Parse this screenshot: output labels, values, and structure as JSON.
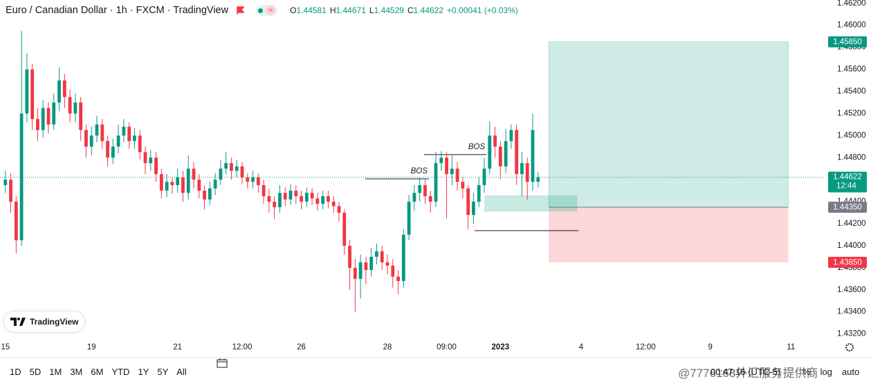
{
  "header": {
    "title": "Euro / Canadian Dollar · 1h · FXCM · TradingView",
    "ohlc_letters": [
      "O",
      "H",
      "L",
      "C"
    ],
    "change": "+0.00041 (+0.03%)"
  },
  "chart_data": {
    "type": "candlestick",
    "open": [
      1.4455,
      1.446,
      1.444,
      1.4405,
      1.452,
      1.456,
      1.4515,
      1.4505,
      1.4525,
      1.451,
      1.453,
      1.455,
      1.4535,
      1.452,
      1.453,
      1.4505,
      1.449,
      1.45,
      1.451,
      1.4495,
      1.448,
      1.449,
      1.45,
      1.4508,
      1.4495,
      1.45,
      1.4485,
      1.4475,
      1.448,
      1.4465,
      1.445,
      1.4458,
      1.4455,
      1.4462,
      1.4448,
      1.447,
      1.446,
      1.445,
      1.4442,
      1.4452,
      1.446,
      1.447,
      1.4475,
      1.4468,
      1.4472,
      1.4462,
      1.4458,
      1.4462,
      1.4455,
      1.4445,
      1.444,
      1.4435,
      1.4448,
      1.4442,
      1.445,
      1.4445,
      1.444,
      1.4448,
      1.4443,
      1.4438,
      1.4445,
      1.444,
      1.4436,
      1.443,
      1.44,
      1.438,
      1.437,
      1.4385,
      1.4378,
      1.439,
      1.4395,
      1.4385,
      1.4382,
      1.4372,
      1.4368,
      1.441,
      1.444,
      1.4448,
      1.4455,
      1.4445,
      1.444,
      1.4475,
      1.448,
      1.4465,
      1.447,
      1.4458,
      1.4452,
      1.4428,
      1.444,
      1.4455,
      1.447,
      1.45,
      1.449,
      1.4472,
      1.4495,
      1.4505,
      1.4465,
      1.4475,
      1.4458,
      1.44581
    ],
    "high": [
      1.4468,
      1.4466,
      1.4445,
      1.4595,
      1.4575,
      1.4565,
      1.4525,
      1.4532,
      1.453,
      1.4538,
      1.4562,
      1.4556,
      1.4542,
      1.4538,
      1.4535,
      1.451,
      1.4508,
      1.4518,
      1.4515,
      1.45,
      1.4497,
      1.451,
      1.4515,
      1.4512,
      1.4507,
      1.4505,
      1.449,
      1.4487,
      1.4485,
      1.447,
      1.4465,
      1.4462,
      1.447,
      1.4468,
      1.4482,
      1.4476,
      1.4465,
      1.4455,
      1.4458,
      1.4466,
      1.4478,
      1.4485,
      1.448,
      1.4478,
      1.4476,
      1.4466,
      1.4468,
      1.4466,
      1.446,
      1.4452,
      1.4445,
      1.4455,
      1.4453,
      1.4456,
      1.4455,
      1.445,
      1.4453,
      1.4452,
      1.4448,
      1.445,
      1.445,
      1.4445,
      1.444,
      1.4433,
      1.4405,
      1.4388,
      1.4392,
      1.439,
      1.4398,
      1.4402,
      1.44,
      1.4392,
      1.4388,
      1.4378,
      1.4415,
      1.4446,
      1.4455,
      1.4462,
      1.446,
      1.445,
      1.4485,
      1.4486,
      1.4485,
      1.4482,
      1.4476,
      1.4462,
      1.4455,
      1.4448,
      1.4462,
      1.448,
      1.4513,
      1.4508,
      1.4495,
      1.4506,
      1.451,
      1.451,
      1.4485,
      1.448,
      1.452,
      1.44671
    ],
    "low": [
      1.4448,
      1.443,
      1.4393,
      1.44,
      1.4512,
      1.4505,
      1.4495,
      1.4498,
      1.4502,
      1.4505,
      1.4522,
      1.4525,
      1.4512,
      1.4512,
      1.4495,
      1.448,
      1.4482,
      1.4494,
      1.4488,
      1.4472,
      1.4474,
      1.4484,
      1.4494,
      1.4488,
      1.4488,
      1.4478,
      1.4465,
      1.4468,
      1.4458,
      1.4443,
      1.4444,
      1.4447,
      1.4448,
      1.444,
      1.4442,
      1.4452,
      1.4443,
      1.4433,
      1.4437,
      1.4446,
      1.4455,
      1.4465,
      1.446,
      1.4462,
      1.4456,
      1.4452,
      1.4452,
      1.4448,
      1.4438,
      1.443,
      1.4424,
      1.443,
      1.4436,
      1.4437,
      1.4438,
      1.4433,
      1.4435,
      1.4437,
      1.4432,
      1.4433,
      1.4434,
      1.443,
      1.4422,
      1.4392,
      1.436,
      1.434,
      1.4352,
      1.4365,
      1.4372,
      1.4383,
      1.4378,
      1.4374,
      1.4362,
      1.4356,
      1.4362,
      1.4405,
      1.4432,
      1.444,
      1.4438,
      1.443,
      1.4435,
      1.4468,
      1.4425,
      1.4455,
      1.445,
      1.4443,
      1.4415,
      1.442,
      1.4435,
      1.4448,
      1.4465,
      1.448,
      1.446,
      1.4466,
      1.4488,
      1.4455,
      1.4445,
      1.4442,
      1.445,
      1.44529
    ],
    "close": [
      1.446,
      1.444,
      1.4405,
      1.452,
      1.456,
      1.4515,
      1.4505,
      1.4525,
      1.451,
      1.453,
      1.455,
      1.4535,
      1.452,
      1.453,
      1.4505,
      1.449,
      1.45,
      1.451,
      1.4495,
      1.448,
      1.449,
      1.45,
      1.4508,
      1.4495,
      1.45,
      1.4485,
      1.4475,
      1.448,
      1.4465,
      1.445,
      1.4458,
      1.4455,
      1.4462,
      1.4448,
      1.447,
      1.446,
      1.445,
      1.4442,
      1.4452,
      1.446,
      1.447,
      1.4475,
      1.4468,
      1.4472,
      1.4462,
      1.4458,
      1.4462,
      1.4455,
      1.4445,
      1.444,
      1.4435,
      1.4448,
      1.4442,
      1.445,
      1.4445,
      1.444,
      1.4448,
      1.4443,
      1.4438,
      1.4445,
      1.444,
      1.4436,
      1.443,
      1.44,
      1.438,
      1.437,
      1.4385,
      1.4378,
      1.439,
      1.4395,
      1.4385,
      1.4382,
      1.4372,
      1.4368,
      1.441,
      1.444,
      1.4448,
      1.4455,
      1.4445,
      1.444,
      1.4475,
      1.448,
      1.4465,
      1.447,
      1.4458,
      1.4452,
      1.4428,
      1.444,
      1.4455,
      1.447,
      1.45,
      1.449,
      1.4472,
      1.4495,
      1.4505,
      1.4465,
      1.4475,
      1.4458,
      1.4505,
      1.44622
    ],
    "colors": {
      "up": "#089981",
      "down": "#f23645"
    },
    "grid": false,
    "countdown": "12:44",
    "xlim": [
      -1,
      152
    ],
    "ylim": [
      1.4316,
      1.4623
    ],
    "xticks": [
      {
        "value": 0,
        "label": "15"
      },
      {
        "value": 16,
        "label": "19"
      },
      {
        "value": 32,
        "label": "21"
      },
      {
        "value": 44,
        "label": "12:00"
      },
      {
        "value": 55,
        "label": "26"
      },
      {
        "value": 71,
        "label": "28"
      },
      {
        "value": 82,
        "label": "09:00"
      },
      {
        "value": 92,
        "label": "2023"
      },
      {
        "value": 107,
        "label": "4"
      },
      {
        "value": 119,
        "label": "12:00"
      },
      {
        "value": 131,
        "label": "9"
      },
      {
        "value": 146,
        "label": "11"
      }
    ],
    "yticks": [
      {
        "value": 1.432,
        "label": "1.43200"
      },
      {
        "value": 1.434,
        "label": "1.43400"
      },
      {
        "value": 1.436,
        "label": "1.43600"
      },
      {
        "value": 1.438,
        "label": "1.43800"
      },
      {
        "value": 1.44,
        "label": "1.44000"
      },
      {
        "value": 1.442,
        "label": "1.44200"
      },
      {
        "value": 1.444,
        "label": "1.44400"
      },
      {
        "value": 1.446,
        "label": "1.44600"
      },
      {
        "value": 1.448,
        "label": "1.44800"
      },
      {
        "value": 1.45,
        "label": "1.45000"
      },
      {
        "value": 1.452,
        "label": "1.45200"
      },
      {
        "value": 1.454,
        "label": "1.45400"
      },
      {
        "value": 1.456,
        "label": "1.45600"
      },
      {
        "value": 1.458,
        "label": "1.45800"
      },
      {
        "value": 1.46,
        "label": "1.46000"
      },
      {
        "value": 1.462,
        "label": "1.46200"
      }
    ],
    "position": {
      "x": [
        101,
        145.5
      ],
      "target": {
        "value": 1.4585,
        "label": "1.45850"
      },
      "entry": {
        "value": 1.4435,
        "label": "1.44350"
      },
      "stop": {
        "value": 1.4385,
        "label": "1.43850"
      }
    },
    "zone": {
      "x": [
        89,
        106.3
      ],
      "y": [
        1.4431,
        1.44457
      ]
    },
    "lines": [
      {
        "x": [
          66.9,
          78.7
        ],
        "price": 1.44607,
        "label": "BOS"
      },
      {
        "x": [
          77.8,
          89.4
        ],
        "price": 1.44827,
        "label": "BOS"
      },
      {
        "x": [
          87.2,
          106.5
        ],
        "price": 1.44137
      }
    ]
  },
  "watermark": "TradingView",
  "footer": {
    "ranges": [
      "1D",
      "5D",
      "1M",
      "3M",
      "6M",
      "YTD",
      "1Y",
      "5Y",
      "All"
    ],
    "time": "00:47:16 (UTC-5)",
    "options": [
      "%",
      "log",
      "auto"
    ],
    "credit": "@7776168外汇服务提供商"
  }
}
